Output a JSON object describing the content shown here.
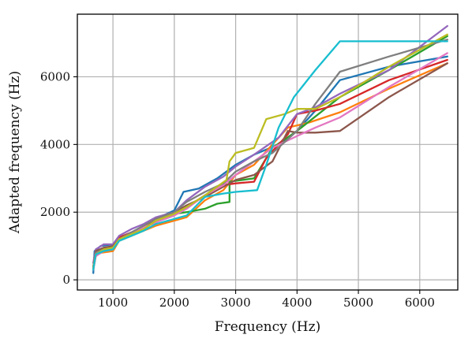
{
  "chart_data": {
    "type": "line",
    "title": "",
    "xlabel": "Frequency (Hz)",
    "ylabel": "Adapted frequency (Hz)",
    "xlim": [
      420,
      6620
    ],
    "ylim": [
      -300,
      7850
    ],
    "xticks": [
      1000,
      2000,
      3000,
      4000,
      5000,
      6000
    ],
    "yticks": [
      0,
      2000,
      4000,
      6000
    ],
    "xtick_labels": [
      "1000",
      "2000",
      "3000",
      "4000",
      "5000",
      "6000"
    ],
    "ytick_labels": [
      "0",
      "2000",
      "4000",
      "6000"
    ],
    "grid": true,
    "legend": "none",
    "series": [
      {
        "color": "#1f77b4",
        "points": [
          [
            680,
            200
          ],
          [
            700,
            850
          ],
          [
            800,
            1000
          ],
          [
            1000,
            1050
          ],
          [
            1100,
            1250
          ],
          [
            1300,
            1400
          ],
          [
            1500,
            1600
          ],
          [
            1700,
            1800
          ],
          [
            2000,
            2050
          ],
          [
            2150,
            2600
          ],
          [
            2400,
            2700
          ],
          [
            2700,
            3000
          ],
          [
            3000,
            3400
          ],
          [
            3300,
            3700
          ],
          [
            3700,
            4000
          ],
          [
            4000,
            4400
          ],
          [
            4300,
            5000
          ],
          [
            4700,
            5900
          ],
          [
            5500,
            6300
          ],
          [
            6450,
            6600
          ]
        ]
      },
      {
        "color": "#ff7f0e",
        "points": [
          [
            680,
            300
          ],
          [
            720,
            700
          ],
          [
            800,
            800
          ],
          [
            1000,
            850
          ],
          [
            1100,
            1150
          ],
          [
            1300,
            1300
          ],
          [
            1500,
            1450
          ],
          [
            1700,
            1600
          ],
          [
            2000,
            1750
          ],
          [
            2200,
            1850
          ],
          [
            2500,
            2350
          ],
          [
            2800,
            2650
          ],
          [
            3000,
            3100
          ],
          [
            3300,
            3400
          ],
          [
            3600,
            4000
          ],
          [
            3850,
            4500
          ],
          [
            4200,
            4650
          ],
          [
            4700,
            4950
          ],
          [
            5500,
            5650
          ],
          [
            6450,
            6400
          ]
        ]
      },
      {
        "color": "#2ca02c",
        "points": [
          [
            680,
            350
          ],
          [
            720,
            800
          ],
          [
            850,
            900
          ],
          [
            1000,
            950
          ],
          [
            1100,
            1200
          ],
          [
            1300,
            1300
          ],
          [
            1500,
            1500
          ],
          [
            1700,
            1750
          ],
          [
            2000,
            1950
          ],
          [
            2200,
            2000
          ],
          [
            2500,
            2100
          ],
          [
            2700,
            2250
          ],
          [
            2900,
            2300
          ],
          [
            2900,
            2900
          ],
          [
            3300,
            3000
          ],
          [
            3600,
            3900
          ],
          [
            4000,
            4400
          ],
          [
            4700,
            5400
          ],
          [
            5500,
            6200
          ],
          [
            6450,
            7200
          ]
        ]
      },
      {
        "color": "#d62728",
        "points": [
          [
            680,
            350
          ],
          [
            720,
            750
          ],
          [
            850,
            900
          ],
          [
            1000,
            950
          ],
          [
            1100,
            1250
          ],
          [
            1300,
            1400
          ],
          [
            1500,
            1550
          ],
          [
            1700,
            1700
          ],
          [
            2000,
            1950
          ],
          [
            2200,
            2150
          ],
          [
            2500,
            2500
          ],
          [
            2800,
            2800
          ],
          [
            3000,
            2850
          ],
          [
            3300,
            2900
          ],
          [
            3500,
            3600
          ],
          [
            3850,
            4300
          ],
          [
            4000,
            4900
          ],
          [
            4300,
            5000
          ],
          [
            4700,
            5200
          ],
          [
            5500,
            5900
          ],
          [
            6450,
            6500
          ]
        ]
      },
      {
        "color": "#9467bd",
        "points": [
          [
            680,
            500
          ],
          [
            720,
            900
          ],
          [
            850,
            1050
          ],
          [
            1000,
            1050
          ],
          [
            1100,
            1300
          ],
          [
            1300,
            1500
          ],
          [
            1500,
            1650
          ],
          [
            1700,
            1850
          ],
          [
            2000,
            2000
          ],
          [
            2200,
            2350
          ],
          [
            2500,
            2750
          ],
          [
            2800,
            3050
          ],
          [
            3000,
            3350
          ],
          [
            3300,
            3700
          ],
          [
            3700,
            4200
          ],
          [
            4000,
            4900
          ],
          [
            4300,
            5100
          ],
          [
            4700,
            5500
          ],
          [
            5500,
            6200
          ],
          [
            6450,
            7500
          ]
        ]
      },
      {
        "color": "#8c564b",
        "points": [
          [
            680,
            400
          ],
          [
            720,
            850
          ],
          [
            850,
            950
          ],
          [
            1000,
            1000
          ],
          [
            1100,
            1200
          ],
          [
            1300,
            1400
          ],
          [
            1500,
            1550
          ],
          [
            1700,
            1800
          ],
          [
            2000,
            2000
          ],
          [
            2200,
            2200
          ],
          [
            2500,
            2450
          ],
          [
            2800,
            2750
          ],
          [
            3000,
            2950
          ],
          [
            3300,
            3100
          ],
          [
            3600,
            3500
          ],
          [
            3850,
            4400
          ],
          [
            4000,
            4350
          ],
          [
            4300,
            4350
          ],
          [
            4700,
            4400
          ],
          [
            5500,
            5400
          ],
          [
            6450,
            6400
          ]
        ]
      },
      {
        "color": "#e377c2",
        "points": [
          [
            680,
            300
          ],
          [
            720,
            700
          ],
          [
            850,
            850
          ],
          [
            1000,
            900
          ],
          [
            1100,
            1200
          ],
          [
            1300,
            1350
          ],
          [
            1500,
            1550
          ],
          [
            1700,
            1700
          ],
          [
            2000,
            1900
          ],
          [
            2200,
            2100
          ],
          [
            2500,
            2500
          ],
          [
            2800,
            2800
          ],
          [
            3000,
            3100
          ],
          [
            3300,
            3500
          ],
          [
            3600,
            3900
          ],
          [
            4000,
            4250
          ],
          [
            4300,
            4500
          ],
          [
            4700,
            4800
          ],
          [
            5500,
            5700
          ],
          [
            6450,
            6700
          ]
        ]
      },
      {
        "color": "#7f7f7f",
        "points": [
          [
            680,
            400
          ],
          [
            720,
            800
          ],
          [
            850,
            900
          ],
          [
            1000,
            950
          ],
          [
            1100,
            1200
          ],
          [
            1300,
            1400
          ],
          [
            1500,
            1600
          ],
          [
            1700,
            1800
          ],
          [
            2000,
            2000
          ],
          [
            2200,
            2300
          ],
          [
            2500,
            2600
          ],
          [
            2800,
            2850
          ],
          [
            3000,
            3200
          ],
          [
            3300,
            3500
          ],
          [
            3600,
            3750
          ],
          [
            4000,
            4400
          ],
          [
            4300,
            5200
          ],
          [
            4700,
            6150
          ],
          [
            5500,
            6600
          ],
          [
            6450,
            7100
          ]
        ]
      },
      {
        "color": "#bcbd22",
        "points": [
          [
            680,
            350
          ],
          [
            720,
            750
          ],
          [
            850,
            900
          ],
          [
            1000,
            950
          ],
          [
            1100,
            1200
          ],
          [
            1300,
            1350
          ],
          [
            1500,
            1500
          ],
          [
            1700,
            1750
          ],
          [
            2000,
            1950
          ],
          [
            2200,
            2150
          ],
          [
            2500,
            2500
          ],
          [
            2850,
            2950
          ],
          [
            2900,
            3500
          ],
          [
            3000,
            3750
          ],
          [
            3300,
            3900
          ],
          [
            3500,
            4750
          ],
          [
            3800,
            4900
          ],
          [
            4000,
            5050
          ],
          [
            4300,
            5050
          ],
          [
            4700,
            5400
          ],
          [
            5500,
            6300
          ],
          [
            6450,
            7250
          ]
        ]
      },
      {
        "color": "#17becf",
        "points": [
          [
            680,
            300
          ],
          [
            720,
            750
          ],
          [
            850,
            850
          ],
          [
            1000,
            900
          ],
          [
            1100,
            1150
          ],
          [
            1300,
            1300
          ],
          [
            1500,
            1450
          ],
          [
            1700,
            1650
          ],
          [
            2000,
            1800
          ],
          [
            2200,
            1900
          ],
          [
            2500,
            2450
          ],
          [
            2800,
            2550
          ],
          [
            3000,
            2600
          ],
          [
            3350,
            2650
          ],
          [
            3500,
            3400
          ],
          [
            3700,
            4500
          ],
          [
            3950,
            5400
          ],
          [
            4300,
            6200
          ],
          [
            4700,
            7050
          ],
          [
            5500,
            7050
          ],
          [
            6450,
            7050
          ]
        ]
      }
    ]
  }
}
